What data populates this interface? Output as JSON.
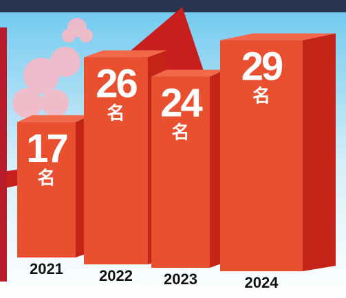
{
  "chart_data": {
    "type": "bar3d",
    "categories": [
      "2021",
      "2022",
      "2023",
      "2024"
    ],
    "values": [
      17,
      26,
      24,
      29
    ],
    "unit": "名",
    "color": "#e9502f"
  }
}
